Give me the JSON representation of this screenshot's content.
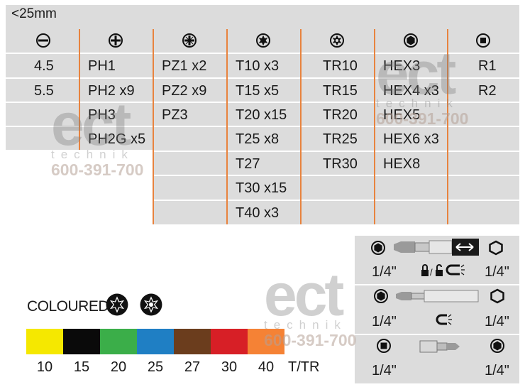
{
  "table": {
    "size_label": "<25mm",
    "columns": [
      {
        "icon": "slotted-icon",
        "items": [
          "4.5",
          "5.5"
        ]
      },
      {
        "icon": "phillips-icon",
        "items": [
          "PH1",
          "PH2 x9",
          "PH3",
          "PH2G x5"
        ]
      },
      {
        "icon": "pozidriv-icon",
        "items": [
          "PZ1 x2",
          "PZ2 x9",
          "PZ3"
        ]
      },
      {
        "icon": "torx-icon",
        "items": [
          "T10 x3",
          "T15 x5",
          "T20 x15",
          "T25 x8",
          "T27",
          "T30 x15",
          "T40 x3"
        ]
      },
      {
        "icon": "torx-tamper-icon",
        "items": [
          "TR10",
          "TR15",
          "TR20",
          "TR25",
          "TR30"
        ]
      },
      {
        "icon": "hex-icon",
        "items": [
          "HEX3",
          "HEX4 x3",
          "HEX5",
          "HEX6 x3",
          "HEX8"
        ]
      },
      {
        "icon": "square-robertson-icon",
        "items": [
          "R1",
          "R2"
        ]
      }
    ]
  },
  "watermarks": {
    "brand": "ect",
    "sub": "technik",
    "phone": "600-391-700"
  },
  "coloured": {
    "label": "COLOURED",
    "swatches": [
      {
        "color": "#f5e800",
        "value": "10"
      },
      {
        "color": "#0a0a0a",
        "value": "15"
      },
      {
        "color": "#3bae49",
        "value": "20"
      },
      {
        "color": "#1f7fc4",
        "value": "25"
      },
      {
        "color": "#6b3d1d",
        "value": "27"
      },
      {
        "color": "#d71f26",
        "value": "30"
      },
      {
        "color": "#f58235",
        "value": "40"
      }
    ],
    "suffix": "T/TR"
  },
  "adapters": [
    {
      "left": "1/4\"",
      "right": "1/4\""
    },
    {
      "left": "1/4\"",
      "right": "1/4\""
    },
    {
      "left": "1/4\"",
      "right": "1/4\""
    }
  ]
}
